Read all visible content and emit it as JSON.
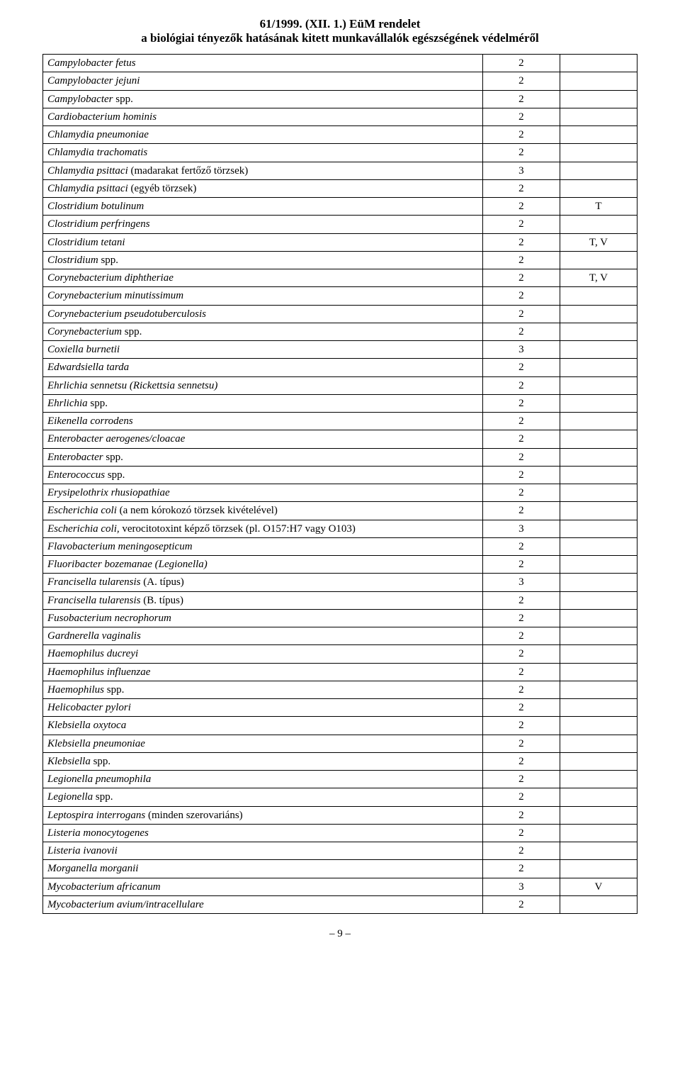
{
  "header": {
    "line1": "61/1999. (XII. 1.) EüM rendelet",
    "line2": "a biológiai tényezők hatásának kitett munkavállalók egészségének védelméről"
  },
  "columns": {
    "name_width_pct": 74,
    "val_width_pct": 13,
    "note_width_pct": 13
  },
  "colors": {
    "background": "#ffffff",
    "text": "#000000",
    "border": "#000000"
  },
  "typography": {
    "family": "Times New Roman",
    "header_fontsize_pt": 13,
    "row_fontsize_pt": 11
  },
  "page_number": "– 9 –",
  "rows": [
    {
      "name": "Campylobacter fetus",
      "val": "2",
      "note": ""
    },
    {
      "name": "Campylobacter jejuni",
      "val": "2",
      "note": ""
    },
    {
      "name": "Campylobacter <span class='roman'>spp.</span>",
      "val": "2",
      "note": ""
    },
    {
      "name": "Cardiobacterium hominis",
      "val": "2",
      "note": ""
    },
    {
      "name": "Chlamydia pneumoniae",
      "val": "2",
      "note": ""
    },
    {
      "name": "Chlamydia trachomatis",
      "val": "2",
      "note": ""
    },
    {
      "name": "Chlamydia psittaci <span class='roman'>(madarakat fertőző törzsek)</span>",
      "val": "3",
      "note": ""
    },
    {
      "name": "Chlamydia psittaci <span class='roman'>(egyéb törzsek)</span>",
      "val": "2",
      "note": ""
    },
    {
      "name": "Clostridium botulinum",
      "val": "2",
      "note": "T"
    },
    {
      "name": "Clostridium perfringens",
      "val": "2",
      "note": ""
    },
    {
      "name": "Clostridium tetani",
      "val": "2",
      "note": "T, V"
    },
    {
      "name": "Clostridium <span class='roman'>spp.</span>",
      "val": "2",
      "note": ""
    },
    {
      "name": "Corynebacterium diphtheriae",
      "val": "2",
      "note": "T, V"
    },
    {
      "name": "Corynebacterium minutissimum",
      "val": "2",
      "note": ""
    },
    {
      "name": "Corynebacterium pseudotuberculosis",
      "val": "2",
      "note": ""
    },
    {
      "name": "Corynebacterium <span class='roman'>spp.</span>",
      "val": "2",
      "note": ""
    },
    {
      "name": "Coxiella burnetii",
      "val": "3",
      "note": ""
    },
    {
      "name": "Edwardsiella tarda",
      "val": "2",
      "note": ""
    },
    {
      "name": "Ehrlichia sennetsu (Rickettsia sennetsu)",
      "val": "2",
      "note": ""
    },
    {
      "name": "Ehrlichia <span class='roman'>spp.</span>",
      "val": "2",
      "note": ""
    },
    {
      "name": "Eikenella corrodens",
      "val": "2",
      "note": ""
    },
    {
      "name": "Enterobacter aerogenes/cloacae",
      "val": "2",
      "note": ""
    },
    {
      "name": "Enterobacter <span class='roman'>spp.</span>",
      "val": "2",
      "note": ""
    },
    {
      "name": "Enterococcus <span class='roman'>spp.</span>",
      "val": "2",
      "note": ""
    },
    {
      "name": "Erysipelothrix rhusiopathiae",
      "val": "2",
      "note": ""
    },
    {
      "name": "Escherichia coli <span class='roman'>(a nem kórokozó törzsek kivételével)</span>",
      "val": "2",
      "note": ""
    },
    {
      "name": "Escherichia coli, <span class='roman'>verocitotoxint képző törzsek (pl. O157:H7 vagy O103)</span>",
      "val": "3",
      "note": ""
    },
    {
      "name": "Flavobacterium meningosepticum",
      "val": "2",
      "note": ""
    },
    {
      "name": "Fluoribacter bozemanae (Legionella)",
      "val": "2",
      "note": ""
    },
    {
      "name": "Francisella tularensis <span class='roman'>(A. típus)</span>",
      "val": "3",
      "note": ""
    },
    {
      "name": "Francisella tularensis <span class='roman'>(B. típus)</span>",
      "val": "2",
      "note": ""
    },
    {
      "name": "Fusobacterium necrophorum",
      "val": "2",
      "note": ""
    },
    {
      "name": "Gardnerella vaginalis",
      "val": "2",
      "note": ""
    },
    {
      "name": "Haemophilus ducreyi",
      "val": "2",
      "note": ""
    },
    {
      "name": "Haemophilus influenzae",
      "val": "2",
      "note": ""
    },
    {
      "name": "Haemophilus <span class='roman'>spp.</span>",
      "val": "2",
      "note": ""
    },
    {
      "name": "Helicobacter pylori",
      "val": "2",
      "note": ""
    },
    {
      "name": "Klebsiella oxytoca",
      "val": "2",
      "note": ""
    },
    {
      "name": "Klebsiella pneumoniae",
      "val": "2",
      "note": ""
    },
    {
      "name": "Klebsiella <span class='roman'>spp.</span>",
      "val": "2",
      "note": ""
    },
    {
      "name": "Legionella pneumophila",
      "val": "2",
      "note": ""
    },
    {
      "name": "Legionella <span class='roman'>spp.</span>",
      "val": "2",
      "note": ""
    },
    {
      "name": "Leptospira interrogans <span class='roman'>(minden szerovariáns)</span>",
      "val": "2",
      "note": ""
    },
    {
      "name": "Listeria monocytogenes",
      "val": "2",
      "note": ""
    },
    {
      "name": "Listeria ivanovii",
      "val": "2",
      "note": ""
    },
    {
      "name": "Morganella morganii",
      "val": "2",
      "note": ""
    },
    {
      "name": "Mycobacterium africanum",
      "val": "3",
      "note": "V"
    },
    {
      "name": "Mycobacterium avium/intracellulare",
      "val": "2",
      "note": ""
    }
  ]
}
